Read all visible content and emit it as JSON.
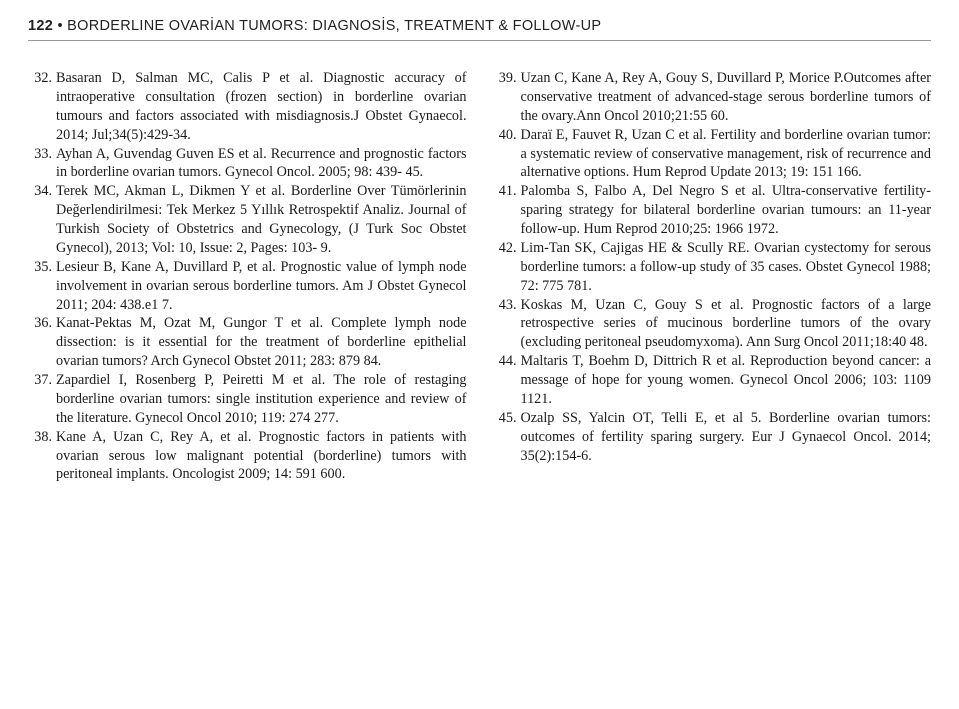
{
  "header": {
    "page_number": "122",
    "bullet": "•",
    "title": "BORDERLINE OVARİAN TUMORS: DIAGNOSİS, TREATMENT & FOLLOW-UP"
  },
  "left_start": 32,
  "right_start": 39,
  "left": [
    "Basaran D, Salman MC, Calis P et al. Diagnostic accuracy of intraoperative consultation (frozen section) in borderline ovarian tumours and factors associated with misdiagnosis.J Obstet Gynaecol. 2014; Jul;34(5):429-34.",
    "Ayhan A, Guvendag Guven ES et al. Recurrence and prognostic factors in borderline ovarian tumors. Gynecol Oncol. 2005; 98: 439- 45.",
    "Terek MC, Akman L, Dikmen Y et al. Borderline Over Tümörlerinin Değerlendirilmesi: Tek Merkez 5 Yıllık Retrospektif Analiz. Journal of Turkish Society of Obstetrics and Gynecology, (J Turk Soc Obstet Gynecol), 2013; Vol: 10, Issue: 2, Pages: 103- 9.",
    "Lesieur B, Kane A, Duvillard P, et al. Prognostic value of lymph node involvement in ovarian serous borderline tumors. Am J Obstet Gynecol 2011; 204: 438.e1 7.",
    "Kanat-Pektas M, Ozat M, Gungor T et al. Complete lymph node dissection: is it essential for the treatment of borderline epithelial ovarian tumors? Arch Gynecol Obstet 2011; 283: 879 84.",
    "Zapardiel I, Rosenberg P, Peiretti M et al. The role of restaging borderline ovarian tumors: single institution experience and review of the literature. Gynecol Oncol 2010; 119: 274 277.",
    "Kane A, Uzan C, Rey A, et al. Prognostic factors in patients with ovarian serous low malignant potential (borderline) tumors with peritoneal implants. Oncologist 2009; 14: 591 600."
  ],
  "right": [
    "Uzan C, Kane A, Rey A, Gouy S, Duvillard P, Morice P.Outcomes after conservative treatment of advanced-stage serous borderline tumors of the ovary.Ann Oncol 2010;21:55 60.",
    "Daraï E, Fauvet R, Uzan C et al. Fertility and borderline ovarian tumor: a systematic review of conservative management, risk of recurrence and alternative options. Hum Reprod Update 2013; 19: 151 166.",
    "Palomba S, Falbo A, Del Negro S et al. Ultra-conservative fertility-sparing strategy for bilateral borderline ovarian tumours: an 11-year follow-up. Hum Reprod 2010;25: 1966 1972.",
    "Lim-Tan SK, Cajigas HE & Scully RE. Ovarian cystectomy for serous borderline tumors: a follow-up study of 35 cases. Obstet Gynecol 1988; 72: 775 781.",
    "Koskas M, Uzan C, Gouy S et al. Prognostic factors of a large retrospective series of mucinous borderline tumors of the ovary (excluding peritoneal pseudomyxoma). Ann Surg Oncol 2011;18:40 48.",
    "Maltaris T, Boehm D, Dittrich R et al. Reproduction beyond cancer: a message of hope for young women. Gynecol Oncol 2006; 103: 1109 1121.",
    "Ozalp SS, Yalcin OT, Telli E, et al 5. Borderline ovarian tumors: outcomes of fertility sparing surgery. Eur J Gynaecol Oncol. 2014; 35(2):154-6."
  ]
}
